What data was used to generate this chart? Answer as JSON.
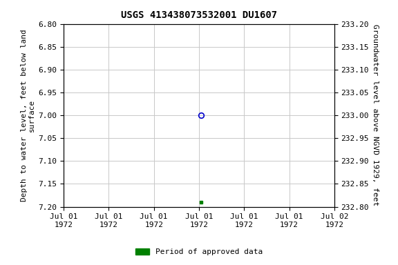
{
  "title": "USGS 413438073532001 DU1607",
  "ylabel_left": "Depth to water level, feet below land\nsurface",
  "ylabel_right": "Groundwater level above NGVD 1929, feet",
  "ylim_left": [
    6.8,
    7.2
  ],
  "ylim_right": [
    232.8,
    233.2
  ],
  "yticks_left": [
    6.8,
    6.85,
    6.9,
    6.95,
    7.0,
    7.05,
    7.1,
    7.15,
    7.2
  ],
  "yticks_right": [
    233.2,
    233.15,
    233.1,
    233.05,
    233.0,
    232.95,
    232.9,
    232.85,
    232.8
  ],
  "xlim": [
    0.0,
    6.0
  ],
  "xtick_labels": [
    "Jul 01\n1972",
    "Jul 01\n1972",
    "Jul 01\n1972",
    "Jul 01\n1972",
    "Jul 01\n1972",
    "Jul 01\n1972",
    "Jul 02\n1972"
  ],
  "xtick_positions": [
    0,
    1,
    2,
    3,
    4,
    5,
    6
  ],
  "data_blue_x": 3.05,
  "data_blue_y": 7.0,
  "data_green_x": 3.05,
  "data_green_y": 7.19,
  "blue_color": "#0000cc",
  "green_color": "#008000",
  "background_color": "#ffffff",
  "grid_color": "#c8c8c8",
  "legend_label": "Period of approved data",
  "title_fontsize": 10,
  "axis_fontsize": 8,
  "tick_fontsize": 8
}
